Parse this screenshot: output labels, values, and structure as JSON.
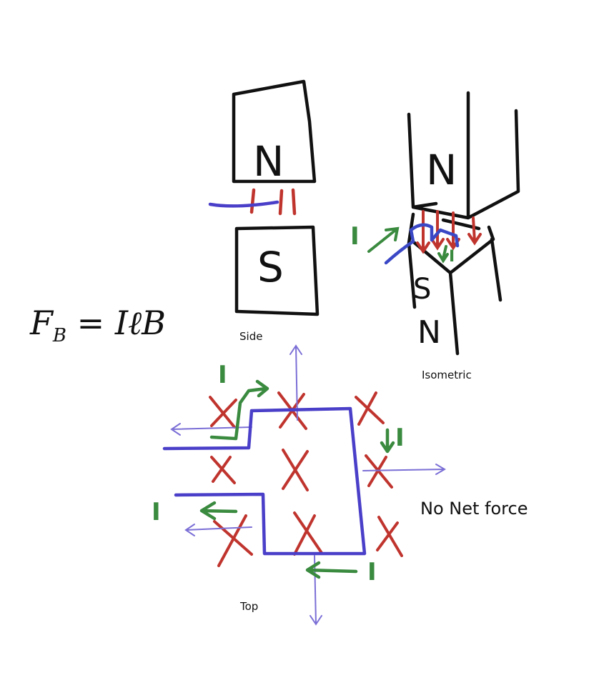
{
  "formula": {
    "main": "F",
    "sub": "B",
    "rest": " = IℓB"
  },
  "side": {
    "north": "N",
    "south": "S",
    "label": "Side"
  },
  "isometric": {
    "north_top": "N",
    "south_mid": "S",
    "north_bottom": "N",
    "label": "Isometric",
    "current": "I"
  },
  "top_view": {
    "label": "Top",
    "current_labels": [
      "I",
      "I",
      "I",
      "I"
    ],
    "conclusion": "No Net force"
  },
  "colors": {
    "ink": "#111111",
    "field": "#c0342e",
    "current": "#3a8a3f",
    "wire": "#4a3fc8",
    "force": "#7b6fd6"
  }
}
